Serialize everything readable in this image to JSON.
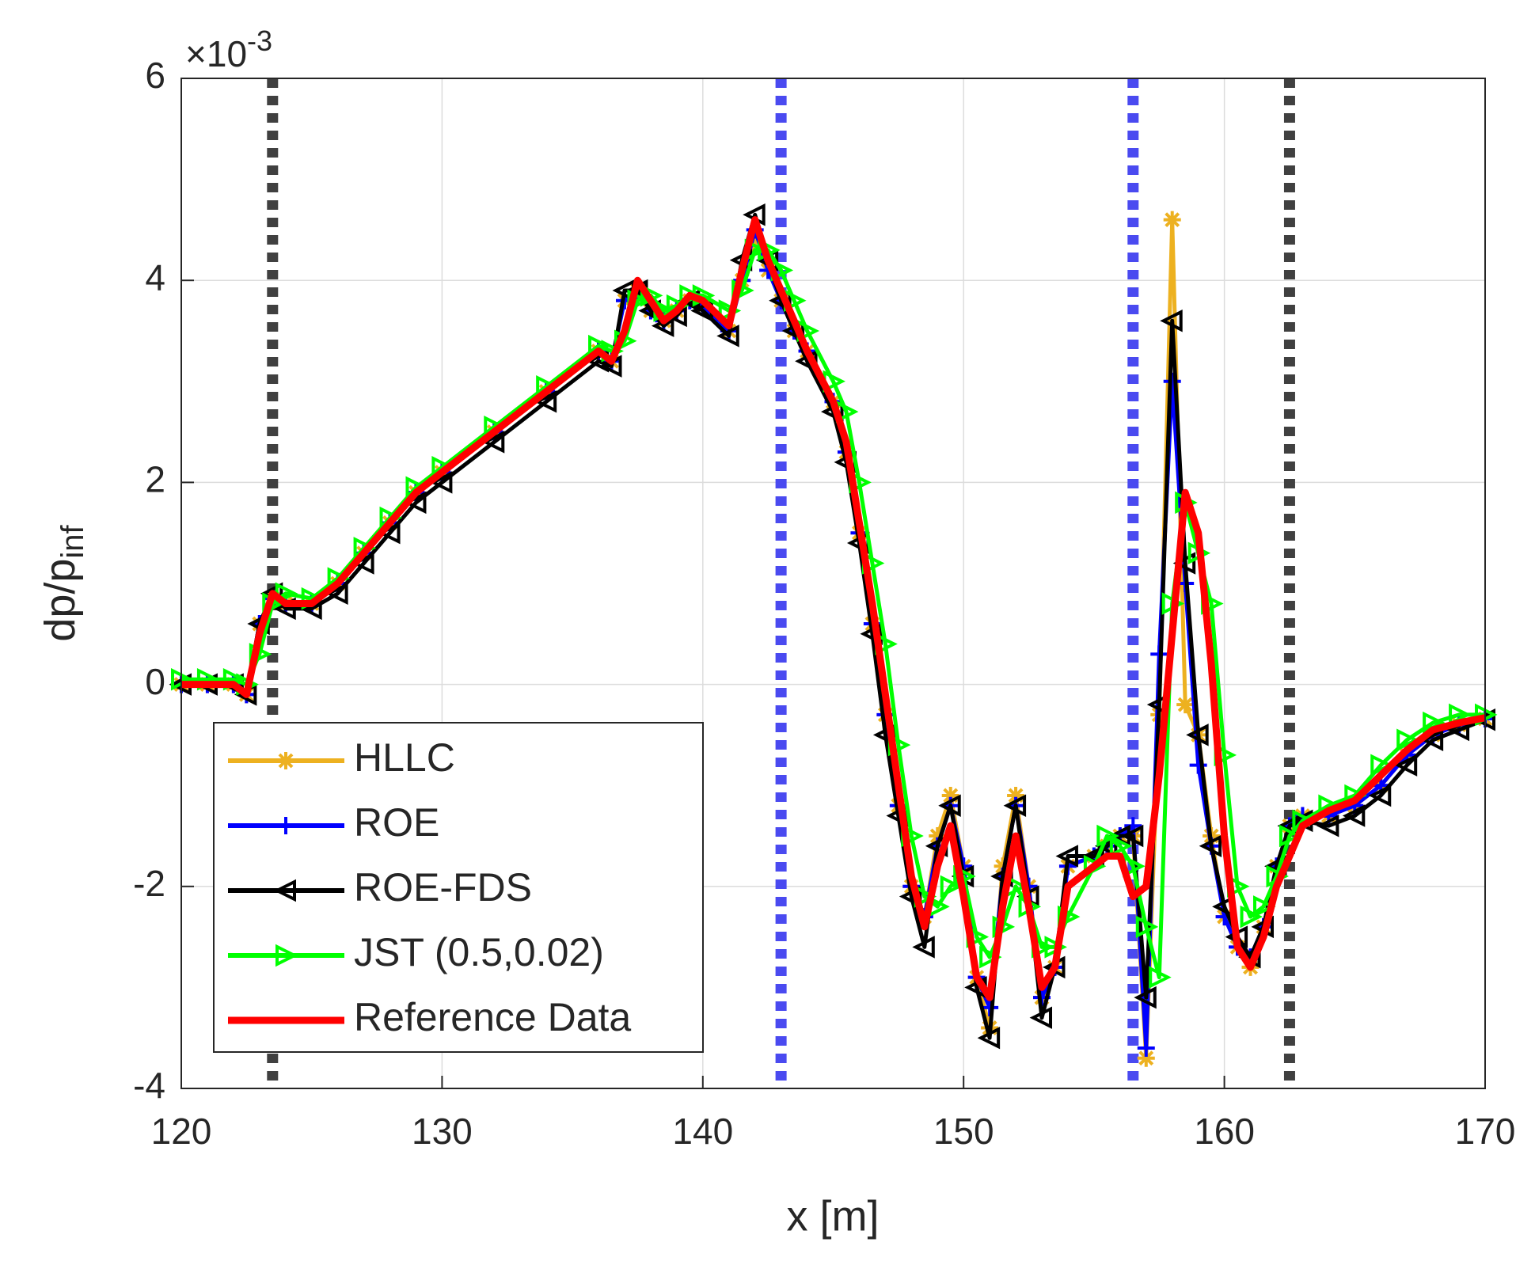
{
  "chart_data": {
    "type": "line",
    "xlabel": "x [m]",
    "ylabel": "dp/p",
    "ylabel_subscript": "inf",
    "y_multiplier": "×10",
    "y_multiplier_exponent": "-3",
    "xlim": [
      120,
      170
    ],
    "xticks": [
      120,
      130,
      140,
      150,
      160,
      170
    ],
    "ylim": [
      -4,
      6
    ],
    "yticks": [
      -4,
      -2,
      0,
      2,
      4,
      6
    ],
    "grid": true,
    "legend": "lower left",
    "vlines": [
      {
        "x": 123.5,
        "color": "#404040"
      },
      {
        "x": 143,
        "color": "#4a4af0"
      },
      {
        "x": 156.5,
        "color": "#4a4af0"
      },
      {
        "x": 162.5,
        "color": "#404040"
      }
    ],
    "x": [
      120,
      121,
      122,
      122.5,
      123,
      123.5,
      124,
      125,
      126,
      127,
      128,
      129,
      130,
      132,
      134,
      136,
      136.5,
      137,
      137.5,
      138,
      138.5,
      139,
      139.5,
      140,
      141,
      141.5,
      142,
      142.5,
      143,
      143.5,
      144,
      145,
      145.5,
      146,
      146.5,
      147,
      147.5,
      148,
      148.5,
      149,
      149.5,
      150,
      150.5,
      151,
      151.5,
      152,
      152.5,
      153,
      153.5,
      154,
      155,
      155.5,
      156,
      156.5,
      157,
      157.5,
      158,
      158.5,
      159,
      159.5,
      160,
      160.5,
      161,
      161.5,
      162,
      162.5,
      163,
      164,
      165,
      166,
      167,
      168,
      169,
      170
    ],
    "series": [
      {
        "name": "HLLC",
        "color": "#edb120",
        "marker": "star",
        "values": [
          0,
          0,
          0,
          -0.1,
          0.6,
          0.85,
          0.8,
          0.8,
          1.0,
          1.3,
          1.6,
          1.9,
          2.1,
          2.5,
          2.9,
          3.3,
          3.2,
          3.8,
          3.9,
          3.7,
          3.6,
          3.7,
          3.8,
          3.75,
          3.5,
          4.0,
          4.4,
          4.1,
          3.8,
          3.5,
          3.3,
          2.8,
          2.3,
          1.5,
          0.6,
          -0.3,
          -1.2,
          -2.0,
          -2.3,
          -1.5,
          -1.1,
          -1.8,
          -2.9,
          -3.4,
          -1.8,
          -1.1,
          -2.0,
          -3.1,
          -2.8,
          -1.8,
          -1.7,
          -1.6,
          -1.5,
          -1.5,
          -3.7,
          -0.3,
          4.6,
          -0.2,
          -0.5,
          -1.5,
          -2.3,
          -2.6,
          -2.8,
          -2.4,
          -1.8,
          -1.4,
          -1.3,
          -1.3,
          -1.2,
          -1.0,
          -0.7,
          -0.5,
          -0.4,
          -0.34
        ]
      },
      {
        "name": "ROE",
        "color": "#0000ff",
        "marker": "plus",
        "values": [
          0,
          0,
          0,
          -0.1,
          0.6,
          0.85,
          0.8,
          0.8,
          1.0,
          1.3,
          1.6,
          1.9,
          2.1,
          2.5,
          2.9,
          3.3,
          3.2,
          3.8,
          3.9,
          3.7,
          3.6,
          3.7,
          3.8,
          3.75,
          3.5,
          4.0,
          4.5,
          4.1,
          3.8,
          3.5,
          3.3,
          2.8,
          2.3,
          1.5,
          0.6,
          -0.3,
          -1.2,
          -2.0,
          -2.3,
          -1.6,
          -1.2,
          -1.8,
          -2.9,
          -3.2,
          -1.9,
          -1.2,
          -2.0,
          -3.1,
          -2.8,
          -1.8,
          -1.7,
          -1.6,
          -1.5,
          -1.4,
          -3.6,
          0.3,
          3.0,
          1.0,
          -0.8,
          -1.6,
          -2.3,
          -2.6,
          -2.7,
          -2.4,
          -1.8,
          -1.4,
          -1.3,
          -1.3,
          -1.2,
          -1.0,
          -0.7,
          -0.5,
          -0.4,
          -0.34
        ]
      },
      {
        "name": "ROE-FDS",
        "color": "#000000",
        "marker": "triangle-left",
        "values": [
          0,
          0,
          0,
          -0.1,
          0.6,
          0.9,
          0.75,
          0.75,
          0.9,
          1.2,
          1.5,
          1.8,
          2.0,
          2.4,
          2.8,
          3.2,
          3.15,
          3.9,
          3.9,
          3.7,
          3.55,
          3.65,
          3.8,
          3.7,
          3.45,
          4.2,
          4.65,
          4.2,
          3.8,
          3.5,
          3.2,
          2.7,
          2.2,
          1.4,
          0.5,
          -0.5,
          -1.3,
          -2.1,
          -2.6,
          -1.6,
          -1.2,
          -1.9,
          -3.0,
          -3.5,
          -1.9,
          -1.2,
          -2.1,
          -3.3,
          -2.8,
          -1.7,
          -1.7,
          -1.6,
          -1.5,
          -1.5,
          -3.1,
          -0.2,
          3.6,
          1.2,
          -0.5,
          -1.6,
          -2.2,
          -2.5,
          -2.7,
          -2.4,
          -1.8,
          -1.4,
          -1.35,
          -1.4,
          -1.3,
          -1.1,
          -0.8,
          -0.55,
          -0.45,
          -0.35
        ]
      },
      {
        "name": "JST (0.5,0.02)",
        "color": "#00ff00",
        "marker": "triangle-right",
        "values": [
          0.05,
          0.05,
          0.05,
          0.0,
          0.3,
          0.8,
          0.9,
          0.85,
          1.05,
          1.35,
          1.65,
          1.95,
          2.15,
          2.55,
          2.95,
          3.35,
          3.3,
          3.4,
          3.8,
          3.85,
          3.7,
          3.75,
          3.85,
          3.85,
          3.7,
          3.9,
          4.3,
          4.3,
          4.1,
          3.8,
          3.5,
          3.0,
          2.7,
          2.0,
          1.2,
          0.4,
          -0.6,
          -1.5,
          -2.1,
          -2.2,
          -2.0,
          -1.9,
          -2.5,
          -2.7,
          -2.4,
          -2.0,
          -2.2,
          -2.6,
          -2.6,
          -2.3,
          -1.8,
          -1.5,
          -1.6,
          -1.8,
          -2.4,
          -2.9,
          0.8,
          1.8,
          1.3,
          0.8,
          -0.7,
          -2.0,
          -2.3,
          -2.2,
          -1.9,
          -1.5,
          -1.35,
          -1.2,
          -1.1,
          -0.8,
          -0.55,
          -0.38,
          -0.3,
          -0.3
        ]
      },
      {
        "name": "Reference Data",
        "color": "#ff0000",
        "marker": "none",
        "values": [
          0,
          0,
          0,
          -0.1,
          0.5,
          0.9,
          0.8,
          0.8,
          1.0,
          1.3,
          1.6,
          1.9,
          2.1,
          2.5,
          2.9,
          3.3,
          3.2,
          3.5,
          4.0,
          3.8,
          3.6,
          3.7,
          3.85,
          3.8,
          3.55,
          4.1,
          4.6,
          4.2,
          3.9,
          3.6,
          3.3,
          2.8,
          2.4,
          1.6,
          0.8,
          -0.1,
          -1.0,
          -1.9,
          -2.4,
          -1.8,
          -1.4,
          -2.1,
          -2.9,
          -3.1,
          -2.2,
          -1.5,
          -2.2,
          -3.0,
          -2.8,
          -2.0,
          -1.8,
          -1.7,
          -1.7,
          -2.1,
          -2.0,
          -0.9,
          0.5,
          1.9,
          1.5,
          0.2,
          -1.5,
          -2.6,
          -2.8,
          -2.5,
          -2.0,
          -1.7,
          -1.4,
          -1.25,
          -1.15,
          -0.9,
          -0.65,
          -0.45,
          -0.38,
          -0.33
        ]
      }
    ]
  }
}
